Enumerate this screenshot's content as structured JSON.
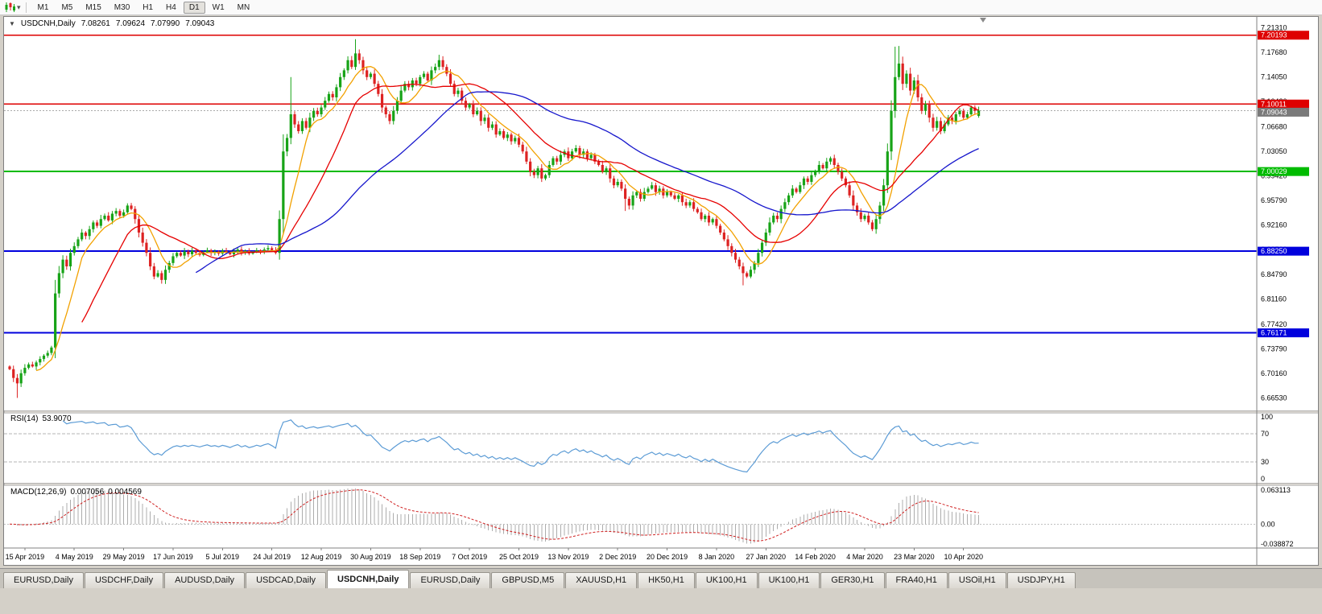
{
  "toolbar": {
    "dropdown_arrow": "▾",
    "timeframes": [
      "M1",
      "M5",
      "M15",
      "M30",
      "H1",
      "H4",
      "D1",
      "W1",
      "MN"
    ],
    "active_timeframe": "D1"
  },
  "chart": {
    "symbol_line": {
      "collapse_icon": "▼",
      "title": "USDCNH,Daily",
      "open": "7.08261",
      "high": "7.09624",
      "low": "7.07990",
      "close": "7.09043"
    },
    "price_axis_labels": [
      "7.21310",
      "7.17680",
      "7.14050",
      "7.10420",
      "7.06680",
      "7.03050",
      "6.99420",
      "6.95790",
      "6.92160",
      "6.88530",
      "6.84790",
      "6.81160",
      "6.77420",
      "6.73790",
      "6.70160",
      "6.66530"
    ],
    "hlines": [
      {
        "price": 7.20193,
        "label": "7.20193",
        "color": "#DE0000",
        "width": 1.2
      },
      {
        "price": 7.10011,
        "label": "7.10011",
        "color": "#DE0000",
        "width": 1.2
      },
      {
        "price": 7.00029,
        "label": "7.00029",
        "color": "#00BB00",
        "width": 2
      },
      {
        "price": 6.8825,
        "label": "6.88250",
        "color": "#0000DD",
        "width": 2
      },
      {
        "price": 6.76171,
        "label": "6.76171",
        "color": "#0000DD",
        "width": 2
      }
    ],
    "current_price": {
      "value": 7.09043,
      "label": "7.09043",
      "box_color": "#7A7A7A"
    }
  },
  "panels": {
    "rsi": {
      "name": "RSI(14)",
      "value": "53.9070",
      "axis_labels": [
        "100",
        "70",
        "30",
        "0"
      ]
    },
    "macd": {
      "name": "MACD(12,26,9)",
      "value": "0.007056",
      "signal": "0.004569",
      "axis_labels": [
        "0.063113",
        "0.00",
        "-0.038872"
      ]
    }
  },
  "chart_data": {
    "type": "candlestick",
    "symbol": "USDCNH",
    "timeframe": "Daily",
    "price_range_top": 7.229,
    "price_range_bottom": 6.647,
    "x_labels": [
      "15 Apr 2019",
      "4 May 2019",
      "29 May 2019",
      "17 Jun 2019",
      "5 Jul 2019",
      "24 Jul 2019",
      "12 Aug 2019",
      "30 Aug 2019",
      "18 Sep 2019",
      "7 Oct 2019",
      "25 Oct 2019",
      "13 Nov 2019",
      "2 Dec 2019",
      "20 Dec 2019",
      "8 Jan 2020",
      "27 Jan 2020",
      "14 Feb 2020",
      "4 Mar 2020",
      "23 Mar 2020",
      "10 Apr 2020"
    ],
    "x_label_indices": [
      4,
      17,
      30,
      43,
      56,
      69,
      82,
      95,
      108,
      121,
      134,
      147,
      160,
      173,
      186,
      199,
      212,
      225,
      238,
      251
    ],
    "closes": [
      6.708,
      6.695,
      6.687,
      6.702,
      6.71,
      6.715,
      6.712,
      6.718,
      6.723,
      6.728,
      6.732,
      6.74,
      6.82,
      6.85,
      6.87,
      6.86,
      6.88,
      6.89,
      6.9,
      6.91,
      6.905,
      6.915,
      6.925,
      6.92,
      6.93,
      6.935,
      6.928,
      6.938,
      6.942,
      6.935,
      6.94,
      6.95,
      6.945,
      6.93,
      6.91,
      6.895,
      6.88,
      6.86,
      6.845,
      6.85,
      6.84,
      6.855,
      6.865,
      6.875,
      6.88,
      6.876,
      6.882,
      6.878,
      6.883,
      6.88,
      6.877,
      6.881,
      6.884,
      6.88,
      6.882,
      6.879,
      6.883,
      6.881,
      6.878,
      6.882,
      6.885,
      6.88,
      6.883,
      6.879,
      6.881,
      6.884,
      6.882,
      6.885,
      6.887,
      6.884,
      6.88,
      6.93,
      7.03,
      7.05,
      7.085,
      7.07,
      7.06,
      7.075,
      7.065,
      7.08,
      7.09,
      7.085,
      7.095,
      7.105,
      7.115,
      7.11,
      7.125,
      7.14,
      7.15,
      7.165,
      7.155,
      7.175,
      7.165,
      7.15,
      7.14,
      7.145,
      7.13,
      7.115,
      7.095,
      7.085,
      7.075,
      7.09,
      7.105,
      7.12,
      7.13,
      7.125,
      7.135,
      7.13,
      7.14,
      7.145,
      7.135,
      7.15,
      7.155,
      7.165,
      7.155,
      7.145,
      7.13,
      7.115,
      7.12,
      7.105,
      7.095,
      7.1,
      7.085,
      7.09,
      7.075,
      7.08,
      7.065,
      7.07,
      7.055,
      7.06,
      7.05,
      7.055,
      7.045,
      7.05,
      7.04,
      7.03,
      7.015,
      7.0,
      6.995,
      7.005,
      6.99,
      6.995,
      7.01,
      7.02,
      7.015,
      7.025,
      7.03,
      7.02,
      7.03,
      7.035,
      7.025,
      7.03,
      7.02,
      7.025,
      7.015,
      7.01,
      7.0,
      7.005,
      6.99,
      6.98,
      6.985,
      6.975,
      6.96,
      6.95,
      6.965,
      6.97,
      6.96,
      6.97,
      6.975,
      6.98,
      6.97,
      6.975,
      6.965,
      6.97,
      6.965,
      6.96,
      6.965,
      6.955,
      6.95,
      6.955,
      6.945,
      6.94,
      6.93,
      6.935,
      6.925,
      6.93,
      6.92,
      6.91,
      6.9,
      6.89,
      6.88,
      6.87,
      6.86,
      6.85,
      6.845,
      6.855,
      6.865,
      6.88,
      6.895,
      6.91,
      6.925,
      6.935,
      6.93,
      6.945,
      6.955,
      6.965,
      6.975,
      6.97,
      6.98,
      6.99,
      6.985,
      6.995,
      7.0,
      7.01,
      7.005,
      7.015,
      7.02,
      7.01,
      7.0,
      6.99,
      6.98,
      6.965,
      6.95,
      6.94,
      6.93,
      6.935,
      6.925,
      6.915,
      6.93,
      6.95,
      6.98,
      7.03,
      7.09,
      7.14,
      7.16,
      7.13,
      7.145,
      7.12,
      7.135,
      7.11,
      7.09,
      7.1,
      7.08,
      7.065,
      7.075,
      7.06,
      7.07,
      7.08,
      7.075,
      7.085,
      7.09,
      7.08,
      7.085,
      7.095,
      7.09,
      7.0904
    ],
    "overrides": {
      "2": {
        "low": 6.6655
      },
      "74": {
        "high": 7.14
      },
      "91": {
        "high": 7.196
      },
      "113": {
        "high": 7.173
      },
      "162": {
        "low": 6.942
      },
      "193": {
        "low": 6.832
      },
      "233": {
        "high": 7.185
      },
      "234": {
        "high": 7.186
      },
      "255": {
        "ohlc": [
          7.08261,
          7.09624,
          7.0799,
          7.09043
        ]
      }
    },
    "candle_colors": {
      "up": "#17A317",
      "down": "#DD2222"
    },
    "moving_averages": [
      {
        "name": "ma-fast",
        "period": 8,
        "color": "#F2A100"
      },
      {
        "name": "ma-medium",
        "period": 20,
        "color": "#E60000"
      },
      {
        "name": "ma-slow",
        "period": 50,
        "color": "#1616CC"
      }
    ],
    "rsi": {
      "period": 14,
      "levels": [
        70,
        30
      ],
      "range": [
        0,
        100
      ],
      "color": "#5B9BD5"
    },
    "macd": {
      "fast": 12,
      "slow": 26,
      "signal": 9,
      "range_max": 0.063113,
      "range_min": -0.038872,
      "histogram_color": "#ACACAC",
      "signal_color": "#D02020"
    }
  },
  "tabs": [
    {
      "label": "EURUSD,Daily",
      "active": false
    },
    {
      "label": "USDCHF,Daily",
      "active": false
    },
    {
      "label": "AUDUSD,Daily",
      "active": false
    },
    {
      "label": "USDCAD,Daily",
      "active": false
    },
    {
      "label": "USDCNH,Daily",
      "active": true
    },
    {
      "label": "EURUSD,Daily",
      "active": false
    },
    {
      "label": "GBPUSD,M5",
      "active": false
    },
    {
      "label": "XAUUSD,H1",
      "active": false
    },
    {
      "label": "HK50,H1",
      "active": false
    },
    {
      "label": "UK100,H1",
      "active": false
    },
    {
      "label": "UK100,H1",
      "active": false
    },
    {
      "label": "GER30,H1",
      "active": false
    },
    {
      "label": "FRA40,H1",
      "active": false
    },
    {
      "label": "USOil,H1",
      "active": false
    },
    {
      "label": "USDJPY,H1",
      "active": false
    }
  ]
}
